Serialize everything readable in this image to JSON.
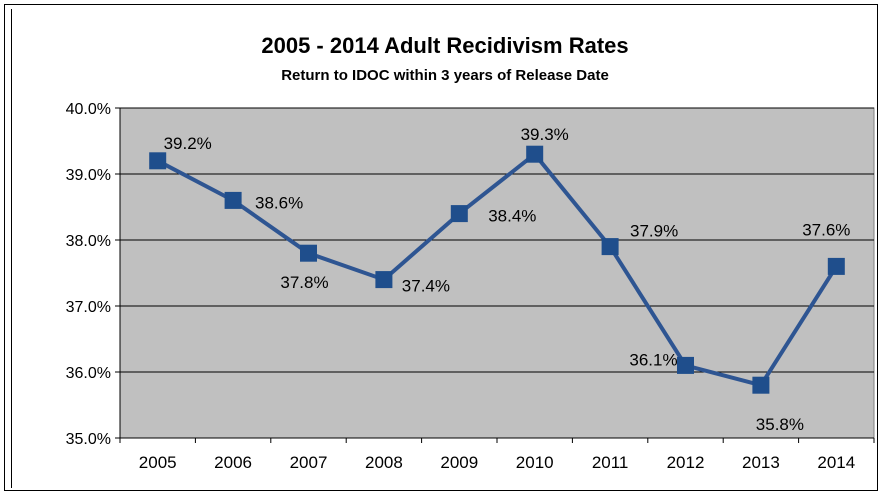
{
  "chart_data": {
    "type": "line",
    "title": "2005 - 2014 Adult Recidivism Rates",
    "subtitle": "Return to IDOC within 3 years of Release Date",
    "categories": [
      "2005",
      "2006",
      "2007",
      "2008",
      "2009",
      "2010",
      "2011",
      "2012",
      "2013",
      "2014"
    ],
    "series": [
      {
        "values": [
          39.2,
          38.6,
          37.8,
          37.4,
          38.4,
          39.3,
          37.9,
          36.1,
          35.8,
          37.6
        ]
      }
    ],
    "data_labels": [
      "39.2%",
      "38.6%",
      "37.8%",
      "37.4%",
      "38.4%",
      "39.3%",
      "37.9%",
      "36.1%",
      "35.8%",
      "37.6%"
    ],
    "ylim": [
      35.0,
      40.0
    ],
    "yticks": [
      35.0,
      36.0,
      37.0,
      38.0,
      39.0,
      40.0
    ],
    "ytick_labels": [
      "35.0%",
      "36.0%",
      "37.0%",
      "38.0%",
      "39.0%",
      "40.0%"
    ],
    "grid": true,
    "legend": "none",
    "colors": {
      "line": "#2e5592",
      "marker": "#1f4e8c",
      "plot_bg": "#c0c0c0",
      "grid": "#000000"
    }
  }
}
